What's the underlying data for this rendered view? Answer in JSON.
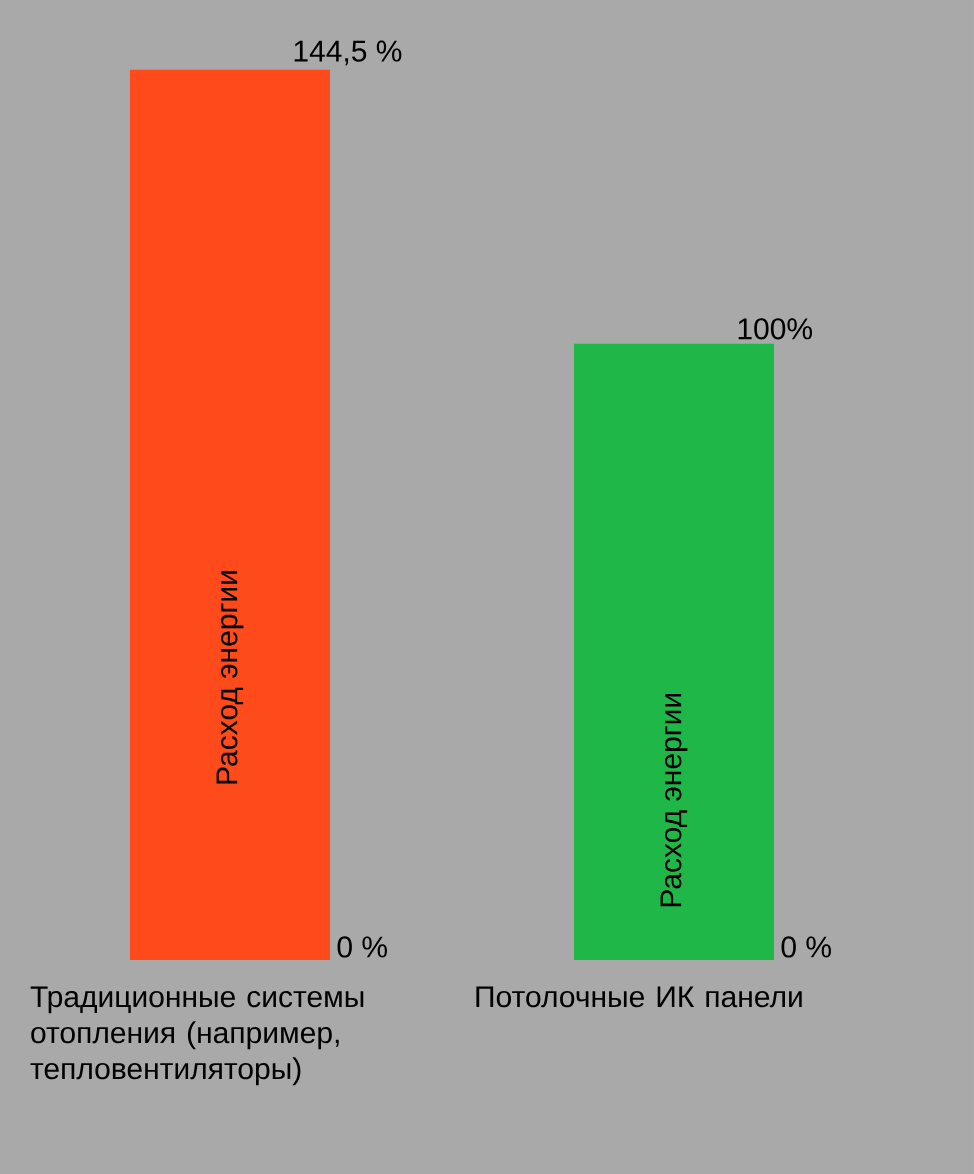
{
  "chart_data": {
    "type": "bar",
    "categories": [
      "Традиционные системы отопления (например, тепловентиляторы)",
      "Потолочные ИК панели"
    ],
    "values": [
      144.5,
      100
    ],
    "value_labels": [
      "144,5 %",
      "100%"
    ],
    "colors": [
      "#ff4a1c",
      "#1fb848"
    ],
    "annotations": [
      "Расход энергии",
      "Расход энергии",
      "0 %",
      "0 %"
    ]
  }
}
